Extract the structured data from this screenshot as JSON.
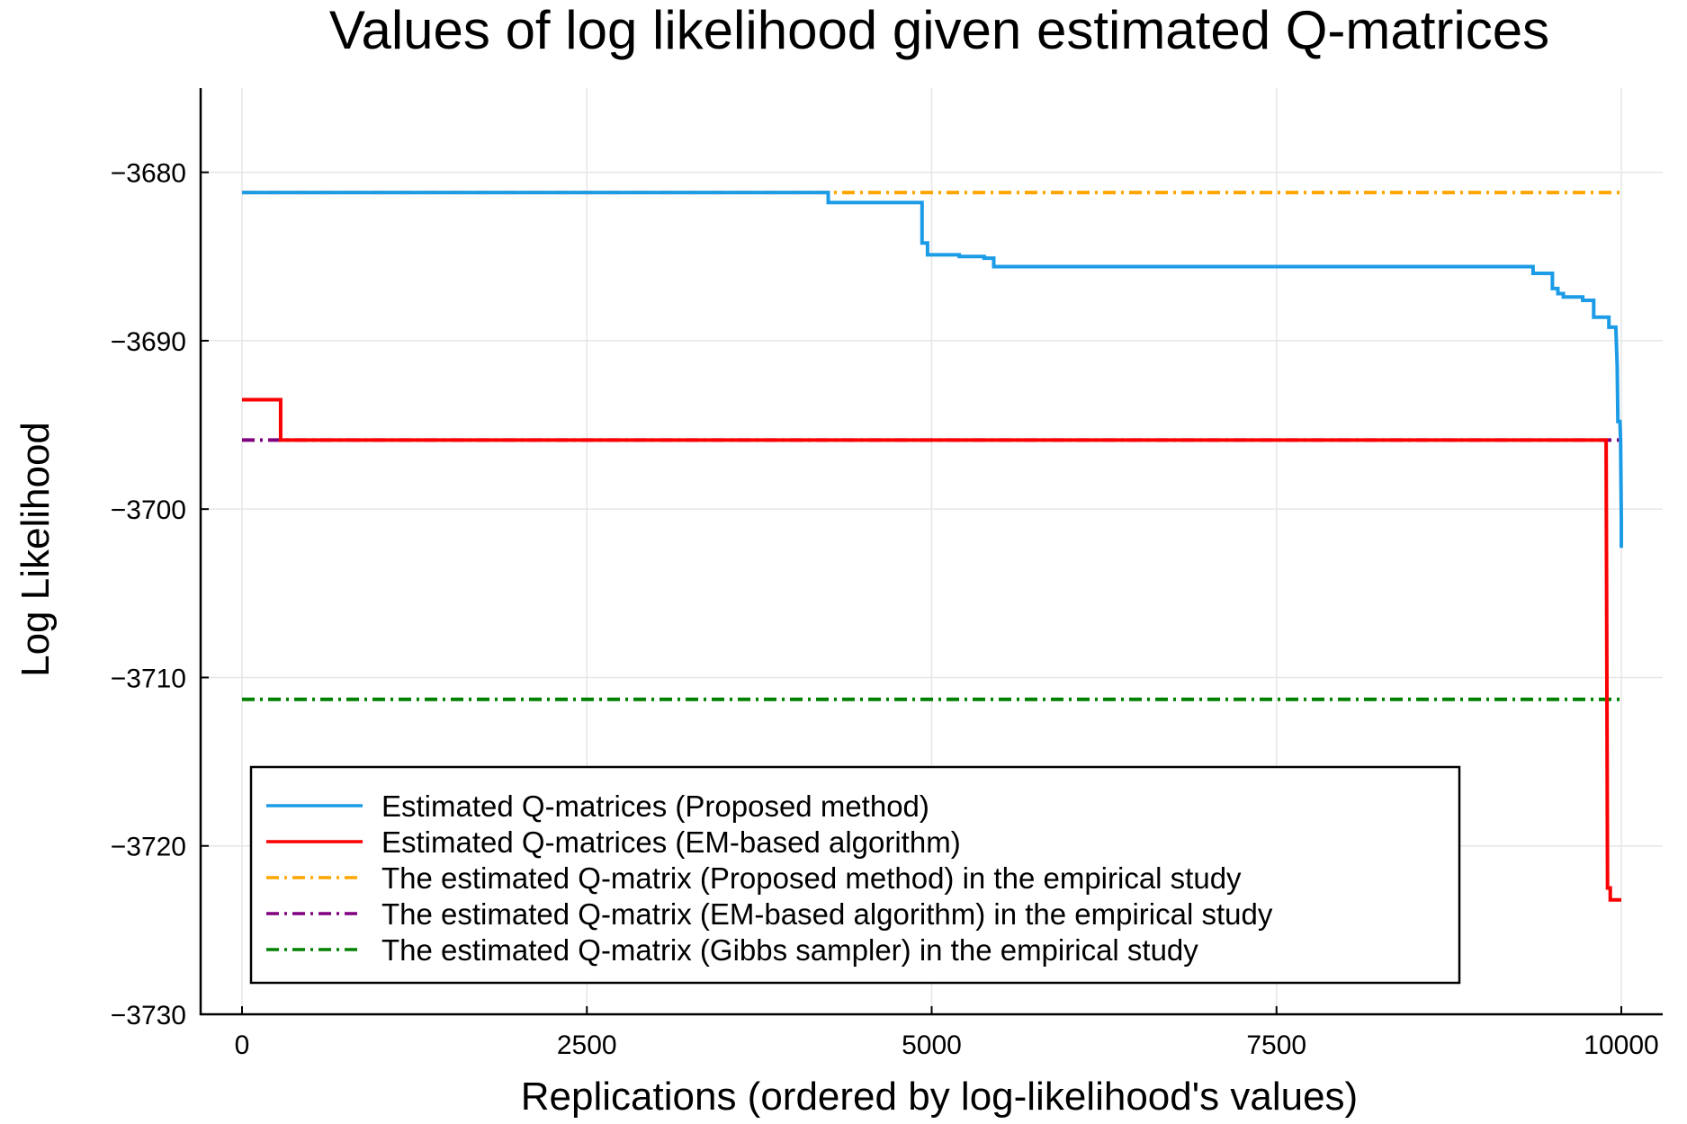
{
  "chart_data": {
    "type": "line",
    "title": "Values of log likelihood given estimated Q-matrices",
    "xlabel": "Replications (ordered by log-likelihood's values)",
    "ylabel": "Log Likelihood",
    "xlim": [
      -300,
      10300
    ],
    "ylim": [
      -3730,
      -3675
    ],
    "xticks": [
      0,
      2500,
      5000,
      7500,
      10000
    ],
    "xtick_labels": [
      "0",
      "2500",
      "5000",
      "7500",
      "10000"
    ],
    "yticks": [
      -3680,
      -3690,
      -3700,
      -3710,
      -3720,
      -3730
    ],
    "ytick_labels": [
      "−3680",
      "−3690",
      "−3700",
      "−3710",
      "−3720",
      "−3730"
    ],
    "grid": true,
    "legend_position": "bottom-left",
    "series": [
      {
        "name": "Estimated Q-matrices (Proposed method)",
        "color": "#1c9be6",
        "style": "solid",
        "points": [
          [
            0,
            -3681.2
          ],
          [
            4250,
            -3681.2
          ],
          [
            4250,
            -3681.8
          ],
          [
            4930,
            -3681.8
          ],
          [
            4930,
            -3684.2
          ],
          [
            4970,
            -3684.2
          ],
          [
            4970,
            -3684.9
          ],
          [
            5200,
            -3684.9
          ],
          [
            5200,
            -3685.0
          ],
          [
            5380,
            -3685.0
          ],
          [
            5380,
            -3685.1
          ],
          [
            5450,
            -3685.1
          ],
          [
            5450,
            -3685.6
          ],
          [
            9360,
            -3685.6
          ],
          [
            9360,
            -3686.0
          ],
          [
            9500,
            -3686.0
          ],
          [
            9500,
            -3686.9
          ],
          [
            9540,
            -3686.9
          ],
          [
            9540,
            -3687.2
          ],
          [
            9580,
            -3687.2
          ],
          [
            9580,
            -3687.4
          ],
          [
            9720,
            -3687.4
          ],
          [
            9720,
            -3687.6
          ],
          [
            9800,
            -3687.6
          ],
          [
            9800,
            -3688.6
          ],
          [
            9910,
            -3688.6
          ],
          [
            9910,
            -3689.2
          ],
          [
            9960,
            -3689.2
          ],
          [
            9970,
            -3691.5
          ],
          [
            9975,
            -3694.8
          ],
          [
            9990,
            -3694.8
          ],
          [
            9995,
            -3696.0
          ],
          [
            10000,
            -3700.6
          ],
          [
            10000,
            -3702.3
          ]
        ]
      },
      {
        "name": "Estimated Q-matrices (EM-based algorithm)",
        "color": "#fa0000",
        "style": "solid",
        "points": [
          [
            0,
            -3693.5
          ],
          [
            280,
            -3693.5
          ],
          [
            280,
            -3695.9
          ],
          [
            9890,
            -3695.9
          ],
          [
            9900,
            -3722.5
          ],
          [
            9920,
            -3722.5
          ],
          [
            9920,
            -3723.2
          ],
          [
            10000,
            -3723.2
          ]
        ]
      },
      {
        "name": "The estimated Q-matrix (Proposed method) in the empirical study",
        "color": "#ffa500",
        "style": "dashdot",
        "points": [
          [
            0,
            -3681.2
          ],
          [
            10000,
            -3681.2
          ]
        ]
      },
      {
        "name": "The estimated Q-matrix (EM-based algorithm) in the empirical study",
        "color": "#800080",
        "style": "dashdot",
        "points": [
          [
            0,
            -3695.9
          ],
          [
            10000,
            -3695.9
          ]
        ]
      },
      {
        "name": "The estimated Q-matrix (Gibbs sampler) in the empirical study",
        "color": "#008000",
        "style": "dashdot",
        "points": [
          [
            0,
            -3711.3
          ],
          [
            10000,
            -3711.3
          ]
        ]
      }
    ]
  }
}
